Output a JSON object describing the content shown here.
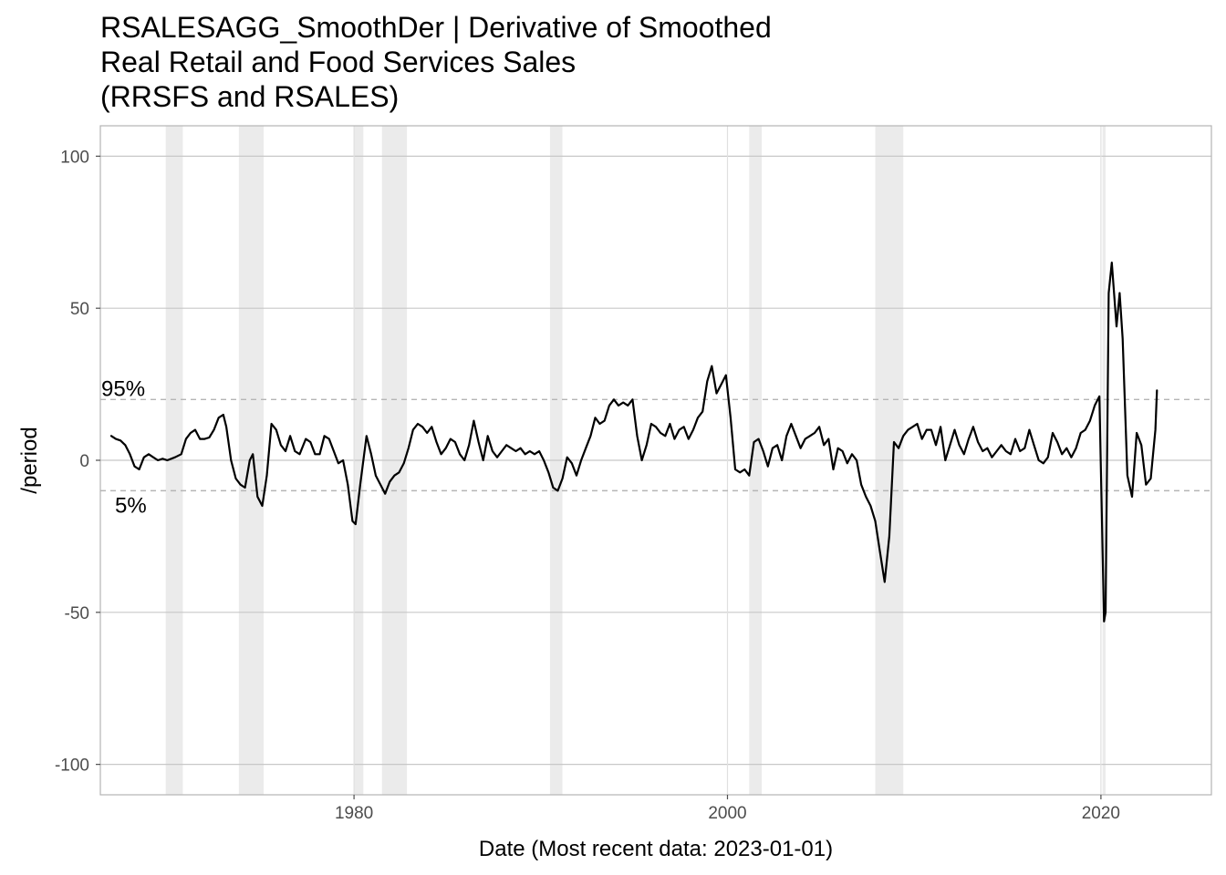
{
  "chart_data": {
    "type": "line",
    "title": [
      "RSALESAGG_SmoothDer | Derivative of Smoothed",
      "Real Retail and Food Services Sales",
      "(RRSFS and RSALES)"
    ],
    "xlabel": "Date (Most recent data: 2023-01-01)",
    "ylabel": "/period",
    "xlim": [
      "1966-06-01",
      "2025-12-01"
    ],
    "ylim": [
      -110,
      110
    ],
    "x_ticks": [
      {
        "value": "1980-01-01",
        "label": "1980"
      },
      {
        "value": "2000-01-01",
        "label": "2000"
      },
      {
        "value": "2020-01-01",
        "label": "2020"
      }
    ],
    "y_ticks": [
      {
        "value": 100,
        "label": "100"
      },
      {
        "value": 50,
        "label": "50"
      },
      {
        "value": 0,
        "label": "0"
      },
      {
        "value": -50,
        "label": "-50"
      },
      {
        "value": -100,
        "label": "-100"
      }
    ],
    "grid": true,
    "recessions": [
      [
        "1969-12-01",
        "1970-11-01"
      ],
      [
        "1973-11-01",
        "1975-03-01"
      ],
      [
        "1980-01-01",
        "1980-07-01"
      ],
      [
        "1981-07-01",
        "1982-11-01"
      ],
      [
        "1990-07-01",
        "1991-03-01"
      ],
      [
        "2001-03-01",
        "2001-11-01"
      ],
      [
        "2007-12-01",
        "2009-06-01"
      ],
      [
        "2020-02-01",
        "2020-04-01"
      ]
    ],
    "reference_lines": [
      {
        "label": "95%",
        "value": 20
      },
      {
        "label": "5%",
        "value": -10
      }
    ],
    "series": [
      {
        "color": "#000000",
        "points": [
          [
            "1967-01-01",
            8
          ],
          [
            "1967-04-01",
            7
          ],
          [
            "1967-07-01",
            6.5
          ],
          [
            "1967-10-01",
            5
          ],
          [
            "1968-01-01",
            2
          ],
          [
            "1968-04-01",
            -2
          ],
          [
            "1968-07-01",
            -3
          ],
          [
            "1968-10-01",
            1
          ],
          [
            "1969-01-01",
            2
          ],
          [
            "1969-04-01",
            1
          ],
          [
            "1969-07-01",
            0
          ],
          [
            "1969-10-01",
            0.5
          ],
          [
            "1970-01-01",
            0
          ],
          [
            "1970-06-01",
            1
          ],
          [
            "1970-10-01",
            2
          ],
          [
            "1971-01-01",
            7
          ],
          [
            "1971-04-01",
            9
          ],
          [
            "1971-07-01",
            10
          ],
          [
            "1971-10-01",
            7
          ],
          [
            "1972-01-01",
            7
          ],
          [
            "1972-04-01",
            7.5
          ],
          [
            "1972-07-01",
            10
          ],
          [
            "1972-10-01",
            14
          ],
          [
            "1973-01-01",
            15
          ],
          [
            "1973-03-01",
            11
          ],
          [
            "1973-06-01",
            0
          ],
          [
            "1973-09-01",
            -6
          ],
          [
            "1973-12-01",
            -8
          ],
          [
            "1974-03-01",
            -9
          ],
          [
            "1974-06-01",
            0
          ],
          [
            "1974-08-01",
            2
          ],
          [
            "1974-11-01",
            -12
          ],
          [
            "1975-02-01",
            -15
          ],
          [
            "1975-05-01",
            -5
          ],
          [
            "1975-08-01",
            12
          ],
          [
            "1975-11-01",
            10
          ],
          [
            "1976-02-01",
            5
          ],
          [
            "1976-05-01",
            3
          ],
          [
            "1976-08-01",
            8
          ],
          [
            "1976-11-01",
            3
          ],
          [
            "1977-02-01",
            2
          ],
          [
            "1977-06-01",
            7
          ],
          [
            "1977-09-01",
            6
          ],
          [
            "1977-12-01",
            2
          ],
          [
            "1978-03-01",
            2
          ],
          [
            "1978-06-01",
            8
          ],
          [
            "1978-09-01",
            7
          ],
          [
            "1978-12-01",
            3
          ],
          [
            "1979-03-01",
            -1
          ],
          [
            "1979-06-01",
            0
          ],
          [
            "1979-09-01",
            -8
          ],
          [
            "1979-12-01",
            -20
          ],
          [
            "1980-02-01",
            -21
          ],
          [
            "1980-05-01",
            -8
          ],
          [
            "1980-09-01",
            8
          ],
          [
            "1980-12-01",
            2
          ],
          [
            "1981-03-01",
            -5
          ],
          [
            "1981-06-01",
            -8
          ],
          [
            "1981-09-01",
            -11
          ],
          [
            "1981-12-01",
            -7
          ],
          [
            "1982-03-01",
            -5
          ],
          [
            "1982-06-01",
            -4
          ],
          [
            "1982-09-01",
            -1
          ],
          [
            "1982-12-01",
            4
          ],
          [
            "1983-03-01",
            10
          ],
          [
            "1983-06-01",
            12
          ],
          [
            "1983-09-01",
            11
          ],
          [
            "1983-12-01",
            9
          ],
          [
            "1984-03-01",
            11
          ],
          [
            "1984-06-01",
            6
          ],
          [
            "1984-09-01",
            2
          ],
          [
            "1984-12-01",
            4
          ],
          [
            "1985-03-01",
            7
          ],
          [
            "1985-06-01",
            6
          ],
          [
            "1985-09-01",
            2
          ],
          [
            "1985-12-01",
            0
          ],
          [
            "1986-03-01",
            5
          ],
          [
            "1986-06-01",
            13
          ],
          [
            "1986-09-01",
            6
          ],
          [
            "1986-12-01",
            0
          ],
          [
            "1987-03-01",
            8
          ],
          [
            "1987-06-01",
            3
          ],
          [
            "1987-09-01",
            1
          ],
          [
            "1987-12-01",
            3
          ],
          [
            "1988-03-01",
            5
          ],
          [
            "1988-06-01",
            4
          ],
          [
            "1988-09-01",
            3
          ],
          [
            "1988-12-01",
            4
          ],
          [
            "1989-03-01",
            2
          ],
          [
            "1989-06-01",
            3
          ],
          [
            "1989-09-01",
            2
          ],
          [
            "1989-12-01",
            3
          ],
          [
            "1990-03-01",
            0
          ],
          [
            "1990-06-01",
            -4
          ],
          [
            "1990-09-01",
            -9
          ],
          [
            "1990-12-01",
            -10
          ],
          [
            "1991-03-01",
            -6
          ],
          [
            "1991-06-01",
            1
          ],
          [
            "1991-09-01",
            -1
          ],
          [
            "1991-12-01",
            -5
          ],
          [
            "1992-03-01",
            0
          ],
          [
            "1992-06-01",
            4
          ],
          [
            "1992-09-01",
            8
          ],
          [
            "1992-12-01",
            14
          ],
          [
            "1993-03-01",
            12
          ],
          [
            "1993-06-01",
            13
          ],
          [
            "1993-09-01",
            18
          ],
          [
            "1993-12-01",
            20
          ],
          [
            "1994-03-01",
            18
          ],
          [
            "1994-06-01",
            19
          ],
          [
            "1994-09-01",
            18
          ],
          [
            "1994-12-01",
            20
          ],
          [
            "1995-03-01",
            8
          ],
          [
            "1995-06-01",
            0
          ],
          [
            "1995-09-01",
            5
          ],
          [
            "1995-12-01",
            12
          ],
          [
            "1996-03-01",
            11
          ],
          [
            "1996-06-01",
            9
          ],
          [
            "1996-09-01",
            8
          ],
          [
            "1996-12-01",
            12
          ],
          [
            "1997-03-01",
            7
          ],
          [
            "1997-06-01",
            10
          ],
          [
            "1997-09-01",
            11
          ],
          [
            "1997-12-01",
            7
          ],
          [
            "1998-03-01",
            10
          ],
          [
            "1998-06-01",
            14
          ],
          [
            "1998-09-01",
            16
          ],
          [
            "1998-12-01",
            26
          ],
          [
            "1999-03-01",
            31
          ],
          [
            "1999-06-01",
            22
          ],
          [
            "1999-09-01",
            25
          ],
          [
            "1999-12-01",
            28
          ],
          [
            "2000-03-01",
            14
          ],
          [
            "2000-06-01",
            -3
          ],
          [
            "2000-09-01",
            -4
          ],
          [
            "2000-12-01",
            -3
          ],
          [
            "2001-03-01",
            -5
          ],
          [
            "2001-06-01",
            6
          ],
          [
            "2001-09-01",
            7
          ],
          [
            "2001-12-01",
            3
          ],
          [
            "2002-03-01",
            -2
          ],
          [
            "2002-06-01",
            4
          ],
          [
            "2002-09-01",
            5
          ],
          [
            "2002-12-01",
            0
          ],
          [
            "2003-03-01",
            8
          ],
          [
            "2003-06-01",
            12
          ],
          [
            "2003-09-01",
            8
          ],
          [
            "2003-12-01",
            4
          ],
          [
            "2004-03-01",
            7
          ],
          [
            "2004-06-01",
            8
          ],
          [
            "2004-09-01",
            9
          ],
          [
            "2004-12-01",
            11
          ],
          [
            "2005-03-01",
            5
          ],
          [
            "2005-06-01",
            7
          ],
          [
            "2005-09-01",
            -3
          ],
          [
            "2005-12-01",
            4
          ],
          [
            "2006-03-01",
            3
          ],
          [
            "2006-06-01",
            -1
          ],
          [
            "2006-09-01",
            2
          ],
          [
            "2006-12-01",
            0
          ],
          [
            "2007-03-01",
            -8
          ],
          [
            "2007-06-01",
            -12
          ],
          [
            "2007-09-01",
            -15
          ],
          [
            "2007-12-01",
            -20
          ],
          [
            "2008-03-01",
            -30
          ],
          [
            "2008-06-01",
            -40
          ],
          [
            "2008-09-01",
            -25
          ],
          [
            "2008-12-01",
            6
          ],
          [
            "2009-03-01",
            4
          ],
          [
            "2009-06-01",
            8
          ],
          [
            "2009-09-01",
            10
          ],
          [
            "2009-12-01",
            11
          ],
          [
            "2010-03-01",
            12
          ],
          [
            "2010-06-01",
            7
          ],
          [
            "2010-09-01",
            10
          ],
          [
            "2010-12-01",
            10
          ],
          [
            "2011-03-01",
            5
          ],
          [
            "2011-06-01",
            11
          ],
          [
            "2011-09-01",
            0
          ],
          [
            "2011-12-01",
            5
          ],
          [
            "2012-03-01",
            10
          ],
          [
            "2012-06-01",
            5
          ],
          [
            "2012-09-01",
            2
          ],
          [
            "2012-12-01",
            7
          ],
          [
            "2013-03-01",
            11
          ],
          [
            "2013-06-01",
            6
          ],
          [
            "2013-09-01",
            3
          ],
          [
            "2013-12-01",
            4
          ],
          [
            "2014-03-01",
            1
          ],
          [
            "2014-06-01",
            3
          ],
          [
            "2014-09-01",
            5
          ],
          [
            "2014-12-01",
            3
          ],
          [
            "2015-03-01",
            2
          ],
          [
            "2015-06-01",
            7
          ],
          [
            "2015-09-01",
            3
          ],
          [
            "2015-12-01",
            4
          ],
          [
            "2016-03-01",
            10
          ],
          [
            "2016-06-01",
            5
          ],
          [
            "2016-09-01",
            0
          ],
          [
            "2016-12-01",
            -1
          ],
          [
            "2017-03-01",
            1
          ],
          [
            "2017-06-01",
            9
          ],
          [
            "2017-09-01",
            6
          ],
          [
            "2017-12-01",
            2
          ],
          [
            "2018-03-01",
            4
          ],
          [
            "2018-06-01",
            1
          ],
          [
            "2018-09-01",
            4
          ],
          [
            "2018-12-01",
            9
          ],
          [
            "2019-03-01",
            10
          ],
          [
            "2019-06-01",
            13
          ],
          [
            "2019-09-01",
            18
          ],
          [
            "2019-12-01",
            21
          ],
          [
            "2020-03-01",
            -53
          ],
          [
            "2020-04-01",
            -50
          ],
          [
            "2020-06-01",
            55
          ],
          [
            "2020-08-01",
            65
          ],
          [
            "2020-11-01",
            44
          ],
          [
            "2021-01-01",
            55
          ],
          [
            "2021-03-01",
            40
          ],
          [
            "2021-06-01",
            -5
          ],
          [
            "2021-09-01",
            -12
          ],
          [
            "2021-12-01",
            9
          ],
          [
            "2022-03-01",
            5
          ],
          [
            "2022-06-01",
            -8
          ],
          [
            "2022-09-01",
            -6
          ],
          [
            "2022-12-01",
            10
          ],
          [
            "2023-01-01",
            23
          ]
        ]
      }
    ]
  }
}
